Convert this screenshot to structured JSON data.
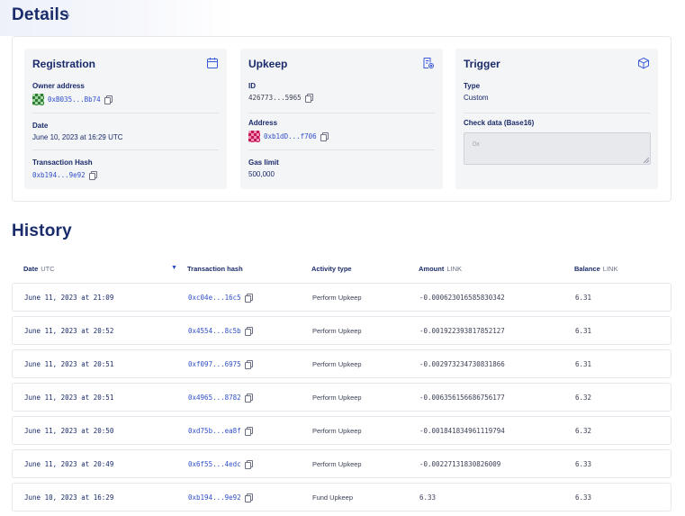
{
  "details": {
    "title": "Details",
    "caret": "^",
    "registration": {
      "title": "Registration",
      "icon": "calendar-icon",
      "owner_label": "Owner address",
      "owner_value": "0xB035...Bb74",
      "date_label": "Date",
      "date_value": "June 10, 2023 at 16:29 UTC",
      "tx_label": "Transaction Hash",
      "tx_value": "0xb194...9e92"
    },
    "upkeep": {
      "title": "Upkeep",
      "icon": "receipt-settings-icon",
      "id_label": "ID",
      "id_value": "426773...5965",
      "address_label": "Address",
      "address_value": "0xb1dD...f706",
      "gas_label": "Gas limit",
      "gas_value": "500,000"
    },
    "trigger": {
      "title": "Trigger",
      "icon": "cube-icon",
      "type_label": "Type",
      "type_value": "Custom",
      "check_label": "Check data (Base16)",
      "check_placeholder": "0x"
    }
  },
  "history": {
    "title": "History",
    "columns": {
      "date": "Date",
      "date_unit": "UTC",
      "tx": "Transaction hash",
      "activity": "Activity type",
      "amount": "Amount",
      "amount_unit": "LINK",
      "balance": "Balance",
      "balance_unit": "LINK"
    },
    "sort_indicator": "▼",
    "rows": [
      {
        "date": "June 11, 2023 at 21:09",
        "tx": "0xc04e...16c5",
        "activity": "Perform Upkeep",
        "amount": "-0.000623016585830342",
        "balance": "6.31"
      },
      {
        "date": "June 11, 2023 at 20:52",
        "tx": "0x4554...8c5b",
        "activity": "Perform Upkeep",
        "amount": "-0.001922393817852127",
        "balance": "6.31"
      },
      {
        "date": "June 11, 2023 at 20:51",
        "tx": "0xf097...6975",
        "activity": "Perform Upkeep",
        "amount": "-0.002973234730831866",
        "balance": "6.31"
      },
      {
        "date": "June 11, 2023 at 20:51",
        "tx": "0x4965...8782",
        "activity": "Perform Upkeep",
        "amount": "-0.006356156686756177",
        "balance": "6.32"
      },
      {
        "date": "June 11, 2023 at 20:50",
        "tx": "0xd75b...ea8f",
        "activity": "Perform Upkeep",
        "amount": "-0.001841834961119794",
        "balance": "6.32"
      },
      {
        "date": "June 11, 2023 at 20:49",
        "tx": "0x6f55...4edc",
        "activity": "Perform Upkeep",
        "amount": "-0.00227131830826009",
        "balance": "6.33"
      },
      {
        "date": "June 10, 2023 at 16:29",
        "tx": "0xb194...9e92",
        "activity": "Fund Upkeep",
        "amount": "6.33",
        "balance": "6.33"
      }
    ]
  }
}
